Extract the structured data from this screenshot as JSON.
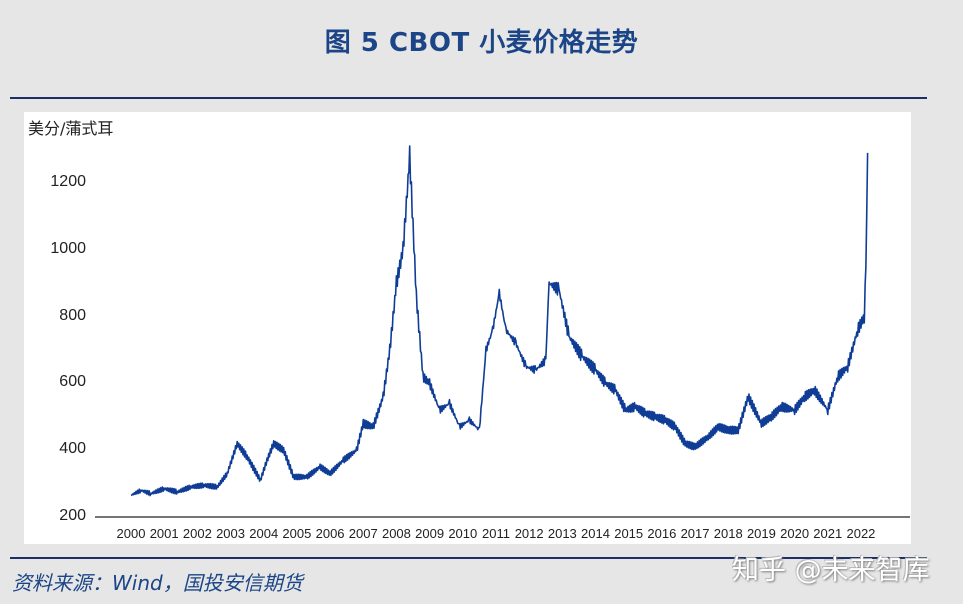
{
  "figure": {
    "title": "图 5 CBOT 小麦价格走势",
    "source": "资料来源：Wind，国投安信期货",
    "watermark": "知乎 @未来智库"
  },
  "colors": {
    "line": "#0f3d96",
    "title": "#1b4587",
    "rule": "#1c2f66",
    "background": "#e6e6e6",
    "panel": "#ffffff"
  },
  "chart_data": {
    "type": "line",
    "title": "图 5 CBOT 小麦价格走势",
    "xlabel": "",
    "ylabel": "美分/蒲式耳",
    "ylim": [
      200,
      1300
    ],
    "yticks": [
      200,
      400,
      600,
      800,
      1000,
      1200
    ],
    "xticks": [
      "2000",
      "2001",
      "2002",
      "2003",
      "2004",
      "2005",
      "2006",
      "2007",
      "2008",
      "2009",
      "2010",
      "2011",
      "2012",
      "2013",
      "2014",
      "2015",
      "2016",
      "2017",
      "2018",
      "2019",
      "2020",
      "2021",
      "2022"
    ],
    "grid": false,
    "legend": null,
    "series": [
      {
        "name": "CBOT 小麦",
        "x": [
          2000.0,
          2000.3,
          2000.6,
          2001.0,
          2001.4,
          2001.8,
          2002.2,
          2002.6,
          2002.9,
          2003.2,
          2003.5,
          2003.9,
          2004.1,
          2004.3,
          2004.6,
          2004.9,
          2005.3,
          2005.7,
          2006.0,
          2006.4,
          2006.8,
          2007.0,
          2007.3,
          2007.6,
          2007.8,
          2008.0,
          2008.2,
          2008.4,
          2008.6,
          2008.8,
          2009.0,
          2009.3,
          2009.6,
          2009.9,
          2010.2,
          2010.5,
          2010.7,
          2010.9,
          2011.1,
          2011.3,
          2011.6,
          2011.9,
          2012.2,
          2012.5,
          2012.6,
          2012.9,
          2013.2,
          2013.6,
          2014.0,
          2014.3,
          2014.6,
          2014.9,
          2015.2,
          2015.5,
          2015.8,
          2016.1,
          2016.4,
          2016.7,
          2017.0,
          2017.4,
          2017.7,
          2018.0,
          2018.3,
          2018.6,
          2019.0,
          2019.3,
          2019.6,
          2020.0,
          2020.3,
          2020.6,
          2021.0,
          2021.3,
          2021.6,
          2021.9,
          2022.1,
          2022.15,
          2022.2
        ],
        "values": [
          265,
          280,
          270,
          285,
          275,
          290,
          295,
          290,
          330,
          420,
          380,
          310,
          370,
          420,
          400,
          320,
          320,
          350,
          330,
          370,
          400,
          480,
          470,
          560,
          700,
          900,
          1000,
          1280,
          860,
          620,
          600,
          520,
          540,
          470,
          490,
          460,
          700,
          760,
          870,
          760,
          720,
          650,
          640,
          670,
          900,
          880,
          740,
          680,
          640,
          600,
          580,
          520,
          530,
          510,
          500,
          490,
          470,
          420,
          410,
          440,
          470,
          460,
          460,
          560,
          480,
          500,
          530,
          520,
          560,
          580,
          520,
          620,
          650,
          760,
          800,
          950,
          1290
        ]
      }
    ]
  }
}
